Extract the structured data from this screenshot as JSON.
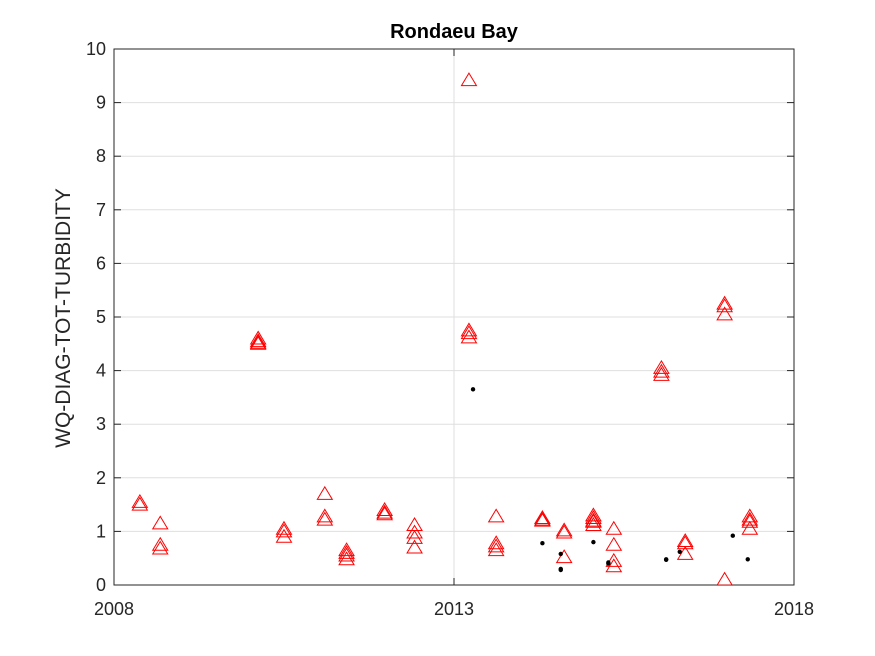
{
  "chart_data": {
    "type": "scatter",
    "title": "Rondaeu Bay",
    "xlabel": "",
    "ylabel": "WQ-DIAG-TOT-TURBIDITY",
    "xlim": [
      2008,
      2018
    ],
    "ylim": [
      0,
      10
    ],
    "x_ticks": [
      "2008",
      "2013",
      "2018"
    ],
    "y_ticks": [
      "0",
      "1",
      "2",
      "3",
      "4",
      "5",
      "6",
      "7",
      "8",
      "9",
      "10"
    ],
    "grid": "on",
    "marker_color": "#ff0000",
    "dot_color": "#000000",
    "series": [
      {
        "marker": "triangle",
        "x": [
          2008.38,
          2008.38,
          2008.68,
          2008.68,
          2008.68,
          2010.12,
          2010.12,
          2010.12,
          2010.12,
          2010.5,
          2010.5,
          2010.5,
          2011.1,
          2011.1,
          2011.1,
          2011.42,
          2011.42,
          2011.42,
          2011.42,
          2011.98,
          2011.98,
          2011.98,
          2012.42,
          2012.42,
          2012.42,
          2012.42,
          2013.22,
          2013.22,
          2013.22,
          2013.22,
          2013.62,
          2013.62,
          2013.62,
          2013.62,
          2014.3,
          2014.3,
          2014.3,
          2014.62,
          2014.62,
          2014.62,
          2015.05,
          2015.05,
          2015.05,
          2015.05,
          2015.05,
          2015.35,
          2015.35,
          2015.35,
          2015.35,
          2016.05,
          2016.05,
          2016.05,
          2016.4,
          2016.4,
          2016.4,
          2016.98,
          2016.98,
          2016.98,
          2016.98,
          2017.35,
          2017.35,
          2017.35,
          2017.35
        ],
        "y": [
          1.55,
          1.5,
          1.15,
          0.75,
          0.68,
          4.6,
          4.55,
          4.5,
          4.52,
          1.05,
          1.0,
          0.9,
          1.7,
          1.28,
          1.22,
          0.65,
          0.6,
          0.55,
          0.48,
          1.4,
          1.35,
          1.32,
          1.12,
          0.98,
          0.88,
          0.7,
          9.42,
          4.75,
          4.7,
          4.62,
          1.28,
          0.78,
          0.72,
          0.65,
          1.25,
          1.22,
          1.2,
          1.02,
          0.98,
          0.52,
          1.3,
          1.25,
          1.2,
          1.18,
          1.12,
          1.05,
          0.75,
          0.45,
          0.35,
          4.05,
          3.98,
          3.92,
          0.82,
          0.78,
          0.58,
          5.25,
          5.2,
          5.05,
          0.1,
          1.28,
          1.22,
          1.18,
          1.05
        ]
      },
      {
        "marker": "dot",
        "x": [
          2013.28,
          2014.3,
          2014.57,
          2014.57,
          2014.57,
          2015.05,
          2015.27,
          2015.27,
          2016.12,
          2016.12,
          2016.32,
          2017.1,
          2017.32
        ],
        "y": [
          3.65,
          0.78,
          0.58,
          0.3,
          0.28,
          0.8,
          0.42,
          0.4,
          0.48,
          0.47,
          0.62,
          0.92,
          0.48
        ]
      }
    ]
  }
}
